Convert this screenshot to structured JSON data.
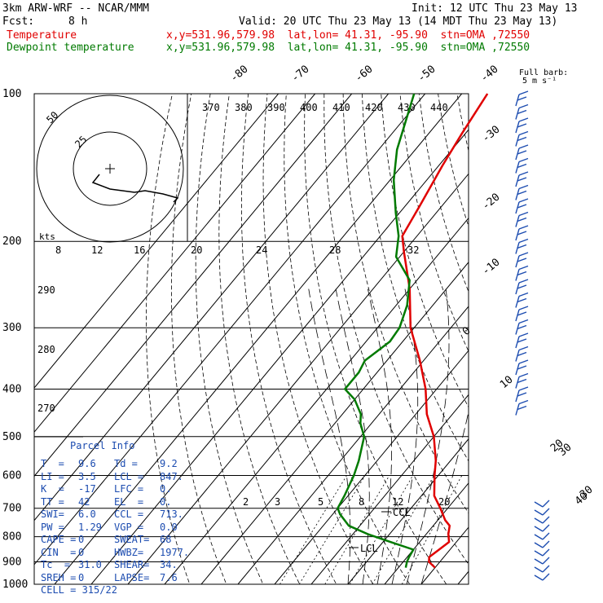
{
  "header": {
    "model": "3km ARW-WRF -- NCAR/MMM",
    "init": "Init: 12 UTC Thu 23 May 13",
    "fcst_label": "Fcst:",
    "fcst_value": "8 h",
    "valid": "Valid: 20 UTC Thu 23 May 13 (14 MDT Thu 23 May 13)",
    "temp_label": "Temperature",
    "temp_info": "x,y=531.96,579.98  lat,lon= 41.31, -95.90  stn=OMA ,72550",
    "dew_label": "Dewpoint temperature",
    "dew_info": "x,y=531.96,579.98  lat,lon= 41.31, -95.90  stn=OMA ,72550",
    "barb_label_1": "Full barb:",
    "barb_label_2": "5 m s⁻¹"
  },
  "colors": {
    "temperature": "#e00000",
    "dewpoint": "#007a00",
    "panel_text": "#1c4cb0",
    "barbs": "#1c4cb0",
    "grid": "#000000"
  },
  "chart_data": {
    "type": "skew-t",
    "pressure_levels": [
      1000,
      900,
      800,
      700,
      600,
      500,
      400,
      300,
      200,
      100
    ],
    "ylim": [
      1000,
      100
    ],
    "isotherm_labels": [
      "-80",
      "-70",
      "-60",
      "-50",
      "-40",
      "-30",
      "-20",
      "-10",
      "0",
      "10",
      "20",
      "30",
      "40"
    ],
    "theta_e_labels": [
      "370",
      "380",
      "390",
      "400",
      "410",
      "420",
      "430",
      "440"
    ],
    "mixing_ratio_labels": [
      "2",
      "3",
      "5",
      "8",
      "12",
      "20"
    ],
    "theta_labels": [
      "290",
      "280",
      "270"
    ],
    "lcl_labels": [
      "CCL",
      "LCL"
    ],
    "series": [
      {
        "name": "Temperature",
        "p": [
          925,
          900,
          880,
          850,
          820,
          790,
          760,
          740,
          700,
          660,
          600,
          560,
          500,
          450,
          400,
          350,
          300,
          250,
          210,
          195,
          170,
          140,
          120,
          100
        ],
        "t": [
          30,
          27,
          26,
          27,
          28,
          26,
          24.5,
          22,
          18,
          13.5,
          9,
          6,
          0,
          -7,
          -13,
          -21,
          -31,
          -40,
          -50,
          -54,
          -56,
          -59,
          -61,
          -63
        ]
      },
      {
        "name": "Dewpoint temperature",
        "p": [
          925,
          900,
          880,
          850,
          820,
          790,
          760,
          720,
          700,
          660,
          600,
          560,
          500,
          470,
          450,
          420,
          400,
          370,
          350,
          320,
          300,
          270,
          240,
          215,
          195,
          175,
          150,
          130,
          100
        ],
        "t": [
          22,
          21,
          20.5,
          20,
          12,
          4,
          -3,
          -8,
          -10,
          -11,
          -13,
          -15,
          -19,
          -23,
          -25,
          -30,
          -35,
          -35,
          -36,
          -33.5,
          -34,
          -37,
          -42,
          -51,
          -55,
          -61,
          -69,
          -75,
          -83
        ]
      }
    ],
    "hodograph": {
      "speed_labels": [
        "50",
        "25"
      ],
      "axis_label": "kts",
      "speed_axis": [
        "8",
        "12",
        "16",
        "20",
        "24",
        "28",
        "32"
      ]
    },
    "wind_barbs_right": 24,
    "wind_barbs_lower": 10,
    "diagonal_labels": [
      "30",
      "40"
    ]
  },
  "panel": {
    "title": "Parcel Info",
    "rows": [
      [
        "T  =",
        "9.6",
        "Td =",
        "9.2"
      ],
      [
        "LI =",
        "3.5",
        "LCL =",
        "847."
      ],
      [
        "K  =",
        "-17",
        "LFC =",
        "0."
      ],
      [
        "TT =",
        "42",
        "EL  =",
        "0."
      ],
      [
        "SWI=",
        "6.0",
        "CCL =",
        "713."
      ],
      [
        "PW =",
        "1.29",
        "VGP =",
        "0.0"
      ],
      [
        "CAPE =",
        "0",
        "SWEAT=",
        "68"
      ],
      [
        "CIN  =",
        "0",
        "HWBZ=",
        "1977."
      ],
      [
        "Tc  =",
        "31.0",
        "SHEAR=",
        "34."
      ],
      [
        "SREH =",
        "0",
        "LAPSE=",
        "7.6"
      ]
    ],
    "cell": "CELL = 315/22"
  }
}
